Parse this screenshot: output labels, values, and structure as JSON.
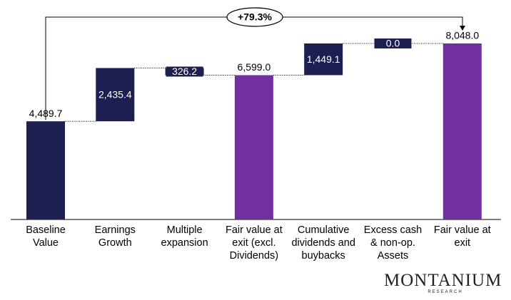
{
  "chart_data": {
    "type": "waterfall",
    "categories": [
      "Baseline Value",
      "Earnings Growth",
      "Multiple expansion",
      "Fair value at exit (excl. Dividends)",
      "Cumulative dividends and buybacks",
      "Excess cash & non-op. Assets",
      "Fair value at exit"
    ],
    "values": [
      4489.7,
      2435.4,
      326.2,
      6599.0,
      1449.1,
      0.0,
      8048.0
    ],
    "value_labels": [
      "4,489.7",
      "2,435.4",
      "326.2",
      "6,599.0",
      "1,449.1",
      "0.0",
      "8,048.0"
    ],
    "measure": [
      "absolute",
      "increase",
      "decrease",
      "total",
      "increase",
      "increase",
      "total"
    ],
    "colors": [
      "#1c1f4f",
      "#1c1f4f",
      "#1c1f4f",
      "#7030a0",
      "#1c1f4f",
      "#1c1f4f",
      "#7030a0"
    ],
    "annotation": "+79.3%",
    "logo": "MONTANIUM",
    "logo_sub": "RESEARCH"
  }
}
